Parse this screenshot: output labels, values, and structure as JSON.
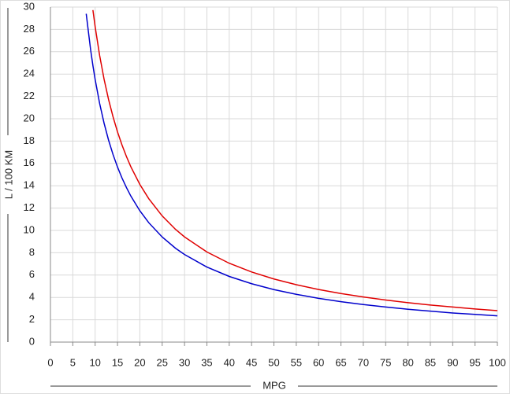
{
  "chart_data": {
    "type": "line",
    "x_label": "MPG",
    "y_label": "L / 100 KM",
    "x": [
      8,
      9,
      9.5,
      10,
      11,
      12,
      13,
      14,
      15,
      16,
      17,
      18,
      20,
      22,
      25,
      28,
      30,
      35,
      40,
      45,
      50,
      55,
      60,
      65,
      70,
      75,
      80,
      85,
      90,
      95,
      100
    ],
    "series": [
      {
        "color": "#e00000",
        "values": [
          null,
          null,
          29.73,
          28.25,
          25.68,
          23.54,
          21.73,
          20.18,
          18.83,
          17.66,
          16.62,
          15.69,
          14.12,
          12.84,
          11.3,
          10.09,
          9.42,
          8.07,
          7.06,
          6.28,
          5.65,
          5.14,
          4.71,
          4.35,
          4.04,
          3.77,
          3.53,
          3.32,
          3.14,
          2.97,
          2.82
        ]
      },
      {
        "color": "#0000cc",
        "values": [
          29.4,
          26.14,
          24.76,
          23.52,
          21.38,
          19.6,
          18.09,
          16.8,
          15.68,
          14.7,
          13.84,
          13.07,
          11.76,
          10.69,
          9.41,
          8.4,
          7.84,
          6.72,
          5.88,
          5.23,
          4.7,
          4.28,
          3.92,
          3.62,
          3.36,
          3.14,
          2.94,
          2.77,
          2.61,
          2.48,
          2.35
        ]
      }
    ],
    "xlim": [
      0,
      100
    ],
    "ylim": [
      0,
      30
    ],
    "xticks": [
      0,
      5,
      10,
      15,
      20,
      25,
      30,
      35,
      40,
      45,
      50,
      55,
      60,
      65,
      70,
      75,
      80,
      85,
      90,
      95,
      100
    ],
    "yticks": [
      0,
      2,
      4,
      6,
      8,
      10,
      12,
      14,
      16,
      18,
      20,
      22,
      24,
      26,
      28,
      30
    ],
    "grid": true
  }
}
